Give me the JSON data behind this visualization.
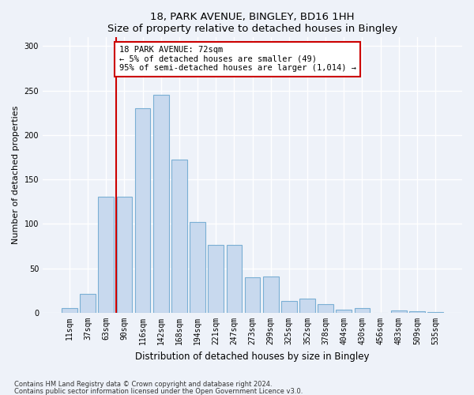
{
  "title1": "18, PARK AVENUE, BINGLEY, BD16 1HH",
  "title2": "Size of property relative to detached houses in Bingley",
  "xlabel": "Distribution of detached houses by size in Bingley",
  "ylabel": "Number of detached properties",
  "categories": [
    "11sqm",
    "37sqm",
    "63sqm",
    "90sqm",
    "116sqm",
    "142sqm",
    "168sqm",
    "194sqm",
    "221sqm",
    "247sqm",
    "273sqm",
    "299sqm",
    "325sqm",
    "352sqm",
    "378sqm",
    "404sqm",
    "430sqm",
    "456sqm",
    "483sqm",
    "509sqm",
    "535sqm"
  ],
  "values": [
    5,
    21,
    131,
    131,
    230,
    245,
    172,
    102,
    76,
    76,
    40,
    41,
    13,
    16,
    10,
    4,
    5,
    0,
    3,
    2,
    1
  ],
  "bar_color": "#c8d9ee",
  "bar_edge_color": "#7aafd4",
  "vline_x": 3.0,
  "vline_color": "#cc0000",
  "annotation_text": "18 PARK AVENUE: 72sqm\n← 5% of detached houses are smaller (49)\n95% of semi-detached houses are larger (1,014) →",
  "annotation_box_color": "#ffffff",
  "annotation_box_edge_color": "#cc0000",
  "ylim": [
    0,
    310
  ],
  "footnote1": "Contains HM Land Registry data © Crown copyright and database right 2024.",
  "footnote2": "Contains public sector information licensed under the Open Government Licence v3.0.",
  "bg_color": "#eef2f9"
}
